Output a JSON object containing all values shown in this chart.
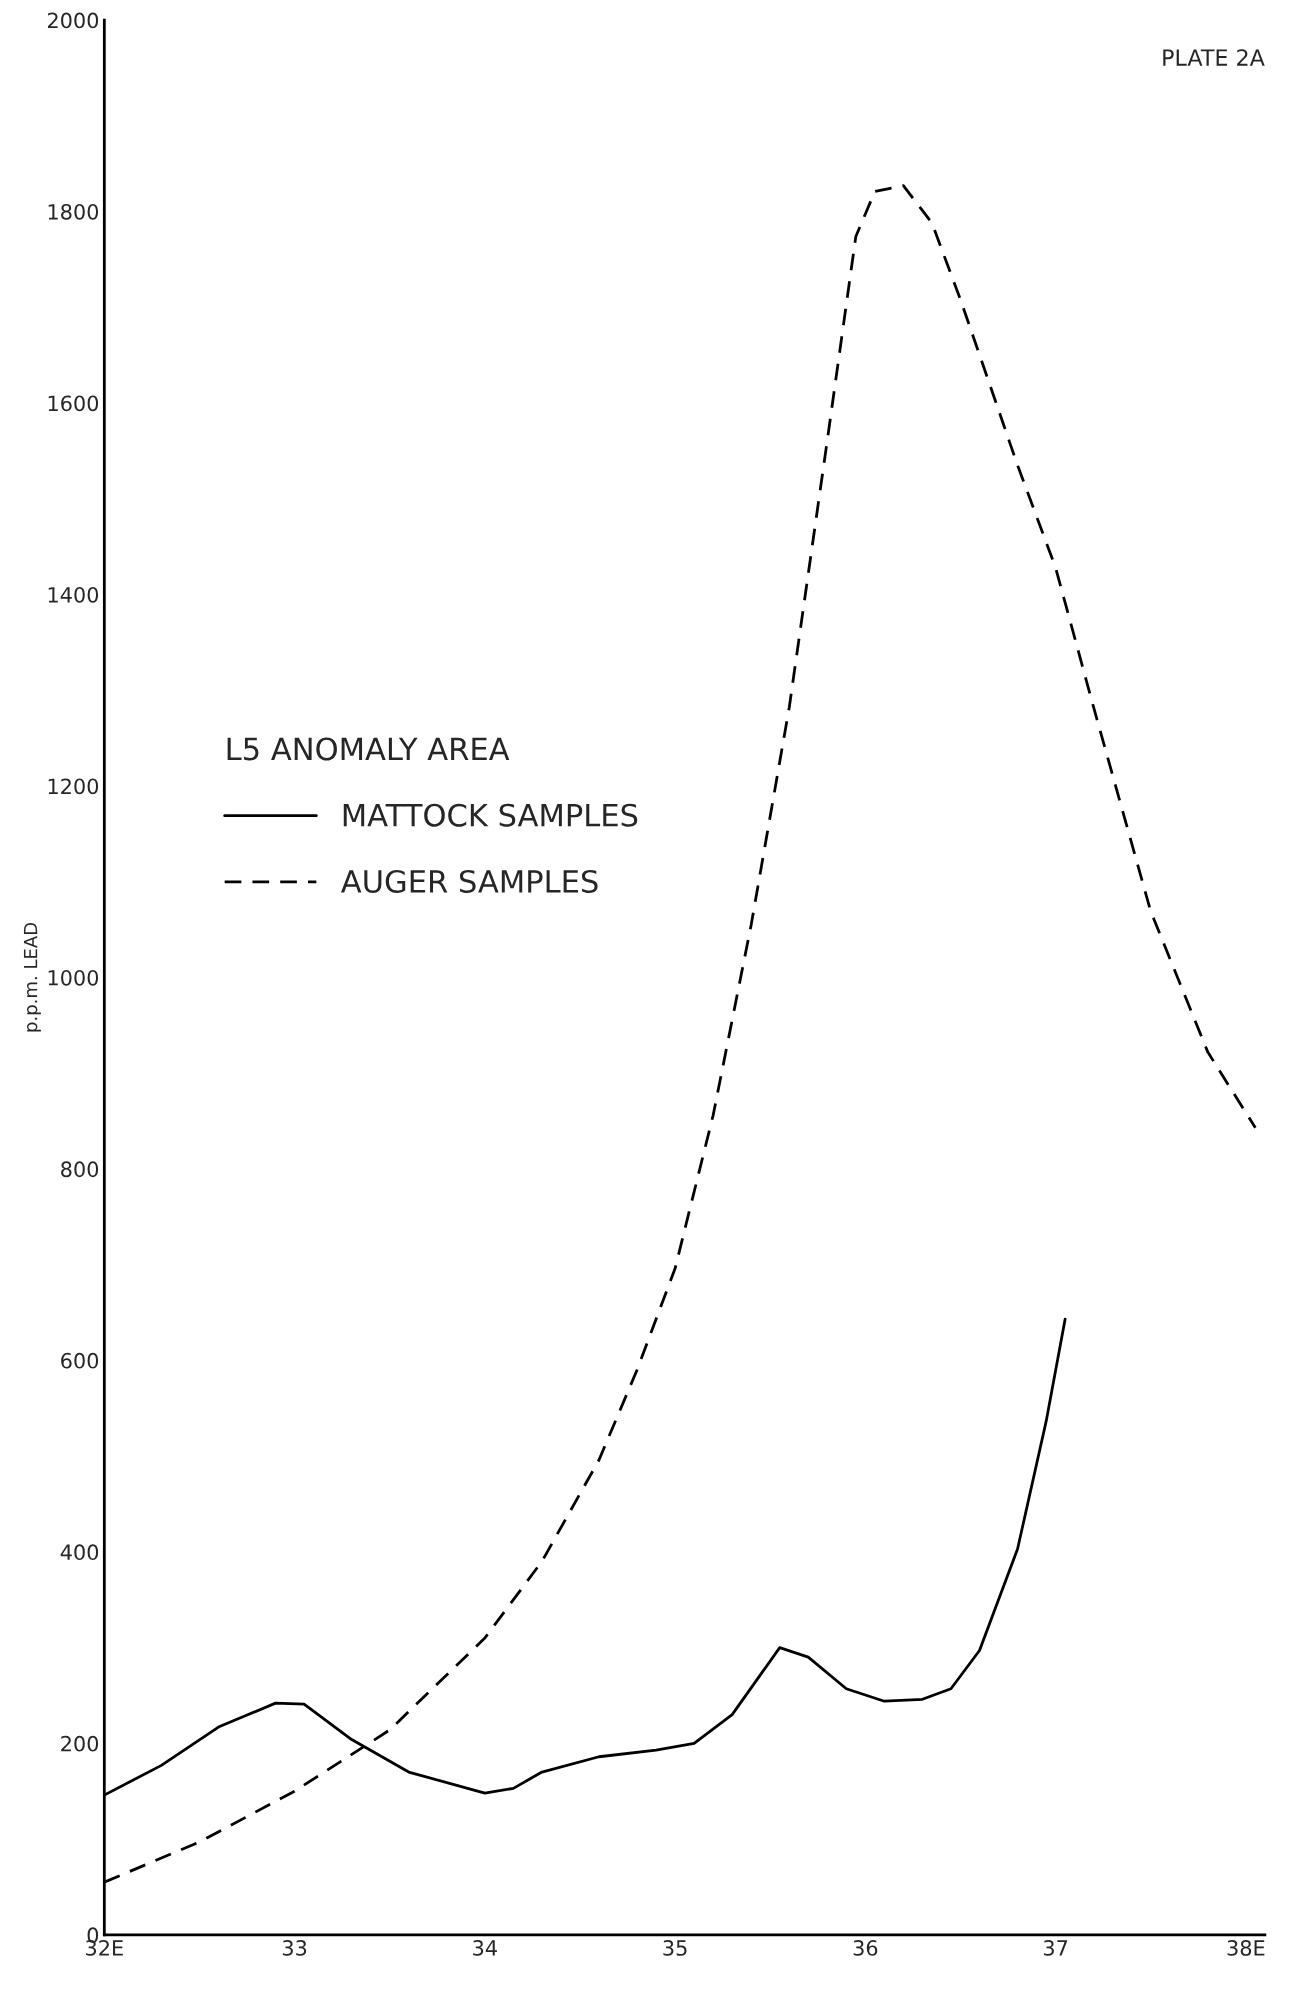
{
  "chart_data": {
    "type": "line",
    "xlabel": null,
    "ylabel": "p.p.m. LEAD",
    "legend_title": "L5 ANOMALY AREA",
    "legend": "top left",
    "grid": false,
    "marker": "none",
    "annotations": [
      "PLATE 2A"
    ],
    "xlim": [
      32,
      38.1
    ],
    "xticks": [
      {
        "value": 32,
        "label": "32E"
      },
      33,
      34,
      35,
      36,
      37,
      {
        "value": 38,
        "label": "38E"
      }
    ],
    "ylim": [
      0,
      2000
    ],
    "yticks": [
      0,
      200,
      400,
      600,
      800,
      1000,
      1200,
      1400,
      1600,
      1800,
      2000
    ],
    "series": [
      {
        "name": "MATTOCK SAMPLES",
        "color": "#000000",
        "line_style": "solid",
        "x": [
          32,
          32.3,
          32.6,
          32.9,
          33.05,
          33.3,
          33.6,
          34.0,
          34.15,
          34.3,
          34.6,
          34.9,
          35.1,
          35.3,
          35.55,
          35.7,
          35.9,
          36.1,
          36.3,
          36.45,
          36.6,
          36.8,
          36.95,
          37.05
        ],
        "values": [
          146,
          177,
          217,
          242,
          241,
          204,
          170,
          148,
          153,
          170,
          186,
          193,
          200,
          230,
          300,
          290,
          257,
          244,
          246,
          257,
          297,
          403,
          536,
          643
        ]
      },
      {
        "name": "AUGER SAMPLES",
        "color": "#000000",
        "line_style": "dashed",
        "x": [
          32,
          32.5,
          33,
          33.5,
          34,
          34.3,
          34.6,
          34.8,
          35,
          35.2,
          35.4,
          35.6,
          35.8,
          35.95,
          36.05,
          36.2,
          36.35,
          36.5,
          36.8,
          37.0,
          37.2,
          37.5,
          37.8,
          38.05
        ],
        "values": [
          55,
          97,
          150,
          214,
          310,
          390,
          496,
          590,
          696,
          856,
          1055,
          1282,
          1561,
          1774,
          1821,
          1827,
          1788,
          1708,
          1535,
          1428,
          1282,
          1069,
          922,
          843
        ]
      }
    ]
  }
}
